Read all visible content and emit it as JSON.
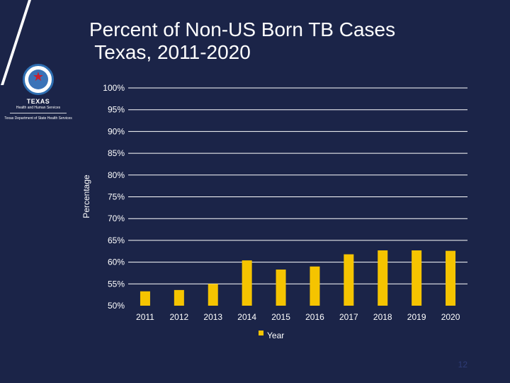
{
  "title_line1": "Percent of Non-US Born TB Cases",
  "title_line2": " Texas, 2011-2020",
  "logo": {
    "org": "TEXAS",
    "sub": "Health and Human Services",
    "dept": "Texas Department of State Health Services"
  },
  "slide_number": "12",
  "colors": {
    "background": "#1b2448",
    "bar": "#f5c400",
    "text": "#ffffff",
    "gridline": "#ffffff"
  },
  "chart_data": {
    "type": "bar",
    "categories": [
      "2011",
      "2012",
      "2013",
      "2014",
      "2015",
      "2016",
      "2017",
      "2018",
      "2019",
      "2020"
    ],
    "values": [
      53.3,
      53.6,
      55.0,
      60.4,
      58.3,
      59.0,
      61.8,
      62.7,
      62.7,
      62.6
    ],
    "ylabel": "Percentage",
    "yticks": [
      "50%",
      "55%",
      "60%",
      "65%",
      "70%",
      "75%",
      "80%",
      "85%",
      "90%",
      "95%",
      "100%"
    ],
    "ylim": [
      50,
      100
    ],
    "legend": "Year",
    "legend_position": "bottom-center",
    "grid": true
  }
}
